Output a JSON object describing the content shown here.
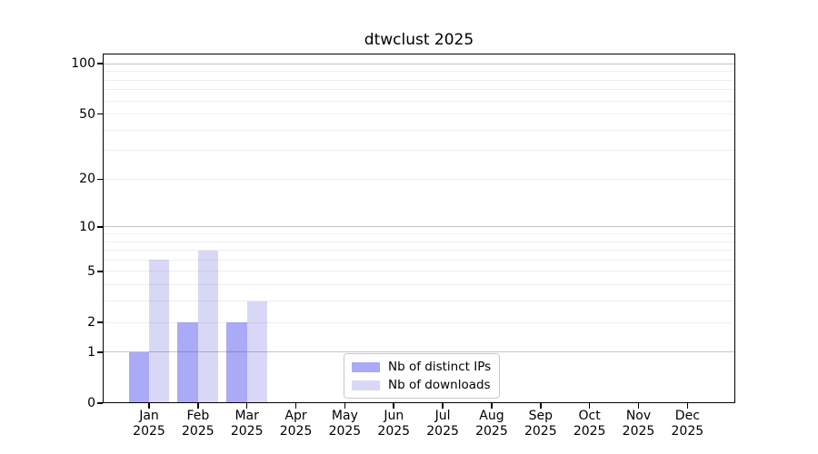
{
  "chart_data": {
    "type": "bar",
    "title": "dtwclust 2025",
    "categories": [
      "Jan",
      "Feb",
      "Mar",
      "Apr",
      "May",
      "Jun",
      "Jul",
      "Aug",
      "Sep",
      "Oct",
      "Nov",
      "Dec"
    ],
    "category_sublabel": "2025",
    "series": [
      {
        "name": "Nb of distinct IPs",
        "color": "rgba(66,66,237,0.45)",
        "solid_color": "#aaaaf7",
        "values": [
          1,
          2,
          2,
          0,
          0,
          0,
          0,
          0,
          0,
          0,
          0,
          0
        ]
      },
      {
        "name": "Nb of downloads",
        "color": "rgba(60,60,210,0.2)",
        "solid_color": "#d8d8f6",
        "values": [
          6,
          7,
          3,
          0,
          0,
          0,
          0,
          0,
          0,
          0,
          0,
          0
        ]
      }
    ],
    "yscale": "log1p",
    "ylim": [
      0,
      115
    ],
    "yticks": [
      0,
      1,
      2,
      5,
      10,
      20,
      50,
      100
    ],
    "grid_major": [
      1,
      10,
      100
    ],
    "grid_minor": [
      2,
      3,
      4,
      5,
      6,
      7,
      8,
      9,
      20,
      30,
      40,
      50,
      60,
      70,
      80,
      90
    ],
    "colors": {
      "grid_major": "#c3c3c3",
      "grid_minor": "#ededed",
      "spine": "#000000",
      "background": "#ffffff"
    },
    "legend": {
      "position": "inside-bottom-center"
    }
  }
}
